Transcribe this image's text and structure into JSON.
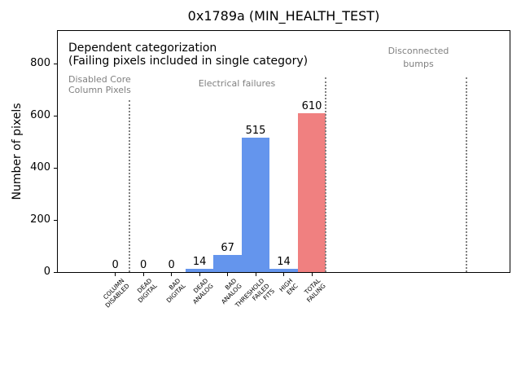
{
  "title": "0x1789a (MIN_HEALTH_TEST)",
  "annotations": {
    "dependent_line1": "Dependent categorization",
    "dependent_line2": "(Failing pixels included in single category)",
    "region_disabled": "Disabled Core\nColumn Pixels",
    "region_electrical": "Electrical failures",
    "region_disconnected": "Disconnected\nbumps"
  },
  "colors": {
    "bar_blue": "#6495ED",
    "bar_red": "#F08080",
    "gray_text": "#808080",
    "divider_gray": "#808080",
    "axis": "#000000"
  },
  "chart_data": {
    "type": "bar",
    "title": "0x1789a (MIN_HEALTH_TEST)",
    "xlabel": "",
    "ylabel": "Number of pixels",
    "categories": [
      "COLUMN\nDISABLED",
      "DEAD\nDIGITAL",
      "BAD\nDIGITAL",
      "DEAD\nANALOG",
      "BAD\nANALOG",
      "THRESHOLD\nFAILED\nFITS",
      "HIGH\nENC",
      "TOTAL\nFAILING"
    ],
    "values": [
      0,
      0,
      0,
      14,
      67,
      515,
      14,
      610
    ],
    "value_labels": [
      "0",
      "0",
      "0",
      "14",
      "67",
      "515",
      "14",
      "610"
    ],
    "bar_colors": [
      "#6495ED",
      "#6495ED",
      "#6495ED",
      "#6495ED",
      "#6495ED",
      "#6495ED",
      "#6495ED",
      "#F08080"
    ],
    "bar_width": 1.0,
    "yticks": [
      0,
      200,
      400,
      600,
      800
    ],
    "ylim": [
      0,
      925
    ],
    "xlim": [
      -2.05,
      14.05
    ],
    "grid": false,
    "legend": null,
    "dividers": [
      {
        "x": 0.5,
        "ymax": 660
      },
      {
        "x": 7.5,
        "ymax": 747
      },
      {
        "x": 12.5,
        "ymax": 747
      }
    ]
  }
}
